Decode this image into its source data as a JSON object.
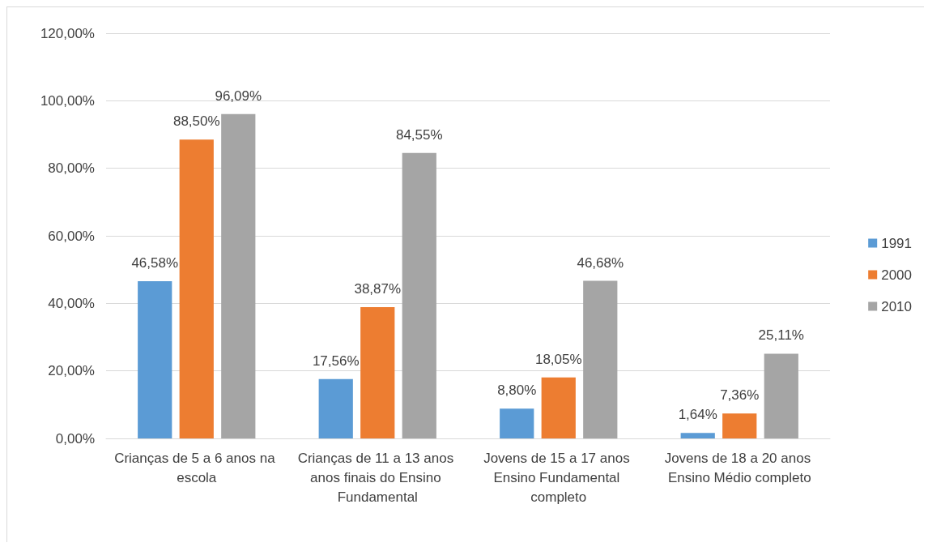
{
  "chart_data": {
    "type": "bar",
    "categories": [
      "Crianças de 5 a 6 anos na escola",
      "Crianças de 11 a 13 anos anos finais do Ensino Fundamental",
      "Jovens de 15 a 17 anos Ensino Fundamental completo",
      "Jovens de 18 a 20 anos Ensino Médio completo"
    ],
    "series": [
      {
        "name": "1991",
        "color": "#5b9bd5",
        "values": [
          46.58,
          17.56,
          8.8,
          1.64
        ],
        "value_labels": [
          "46,58%",
          "17,56%",
          "8,80%",
          "1,64%"
        ]
      },
      {
        "name": "2000",
        "color": "#ed7d31",
        "values": [
          88.5,
          38.87,
          18.05,
          7.36
        ],
        "value_labels": [
          "88,50%",
          "38,87%",
          "18,05%",
          "7,36%"
        ]
      },
      {
        "name": "2010",
        "color": "#a5a5a5",
        "values": [
          96.09,
          84.55,
          46.68,
          25.11
        ],
        "value_labels": [
          "96,09%",
          "84,55%",
          "46,68%",
          "25,11%"
        ]
      }
    ],
    "ylim": [
      0,
      120
    ],
    "yticks": [
      {
        "value": 0,
        "label": "0,00%"
      },
      {
        "value": 20,
        "label": "20,00%"
      },
      {
        "value": 40,
        "label": "40,00%"
      },
      {
        "value": 60,
        "label": "60,00%"
      },
      {
        "value": 80,
        "label": "80,00%"
      },
      {
        "value": 100,
        "label": "100,00%"
      },
      {
        "value": 120,
        "label": "120,00%"
      }
    ],
    "grid": "y",
    "legend": "right"
  }
}
